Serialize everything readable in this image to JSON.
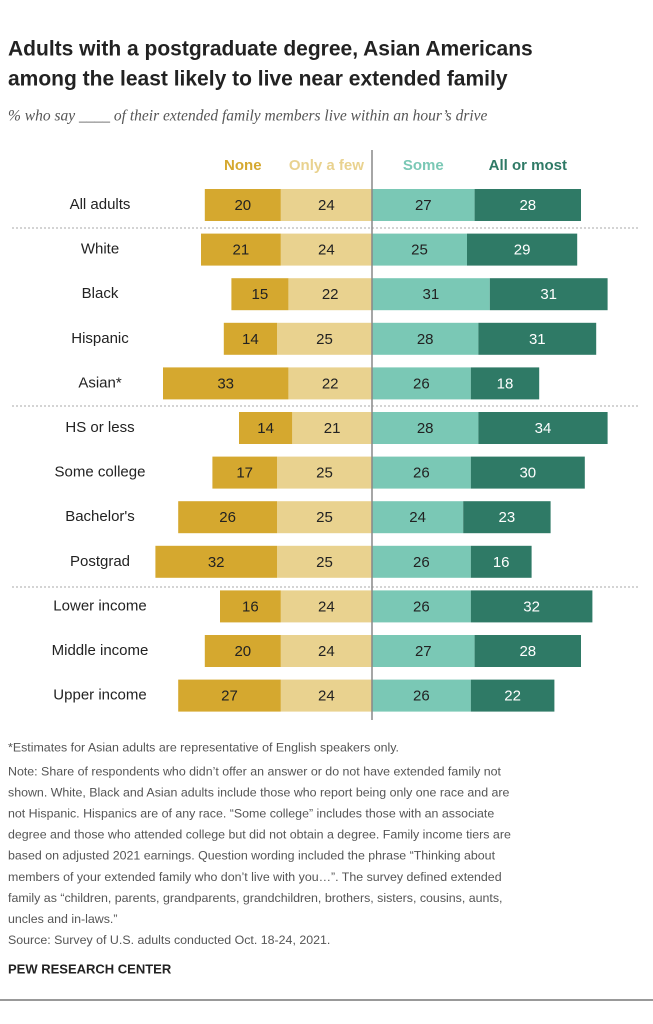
{
  "chart_data": {
    "type": "diverging-bar",
    "title": [
      "Adults with a postgraduate degree, Asian Americans",
      "among the least likely to live near extended family"
    ],
    "subtitle": "% who say ____ of their extended family members live within an hour’s drive",
    "categories": [
      "All adults",
      "White",
      "Black",
      "Hispanic",
      "Asian*",
      "HS or less",
      "Some college",
      "Bachelor's",
      "Postgrad",
      "Lower income",
      "Middle income",
      "Upper income"
    ],
    "series": [
      {
        "name": "None",
        "color": "#d5a82f",
        "side": "left",
        "values": [
          20,
          21,
          15,
          14,
          33,
          14,
          17,
          26,
          32,
          16,
          20,
          27
        ]
      },
      {
        "name": "Only a few",
        "color": "#e9d28f",
        "side": "left",
        "values": [
          24,
          24,
          22,
          25,
          22,
          21,
          25,
          25,
          25,
          24,
          24,
          24
        ]
      },
      {
        "name": "Some",
        "color": "#7ac8b5",
        "side": "right",
        "values": [
          27,
          25,
          31,
          28,
          26,
          28,
          26,
          24,
          26,
          26,
          27,
          26
        ]
      },
      {
        "name": "All or most",
        "color": "#2f7a66",
        "side": "right",
        "values": [
          28,
          29,
          31,
          31,
          18,
          34,
          30,
          23,
          16,
          32,
          28,
          22
        ]
      }
    ],
    "notes": [
      "*Estimates for Asian adults are representative of English speakers only.",
      "Note: Share of respondents who didn’t offer an answer or do not have extended family not",
      "shown. White, Black and Asian adults include those who report being only one race and are",
      "not Hispanic. Hispanics are of any race. “Some college” includes those with an associate",
      "degree and those who attended college but did not obtain a degree. Family income tiers are",
      "based on adjusted 2021 earnings. Question wording included the phrase “Thinking about",
      "members of your extended family who don’t live with you…”. The survey defined extended",
      "family as “children, parents, grandparents, grandchildren, brothers, sisters, cousins, aunts,",
      "uncles and in-laws.”",
      "Source: Survey of U.S. adults conducted Oct. 18-24, 2021."
    ],
    "source_org": "PEW RESEARCH CENTER"
  }
}
